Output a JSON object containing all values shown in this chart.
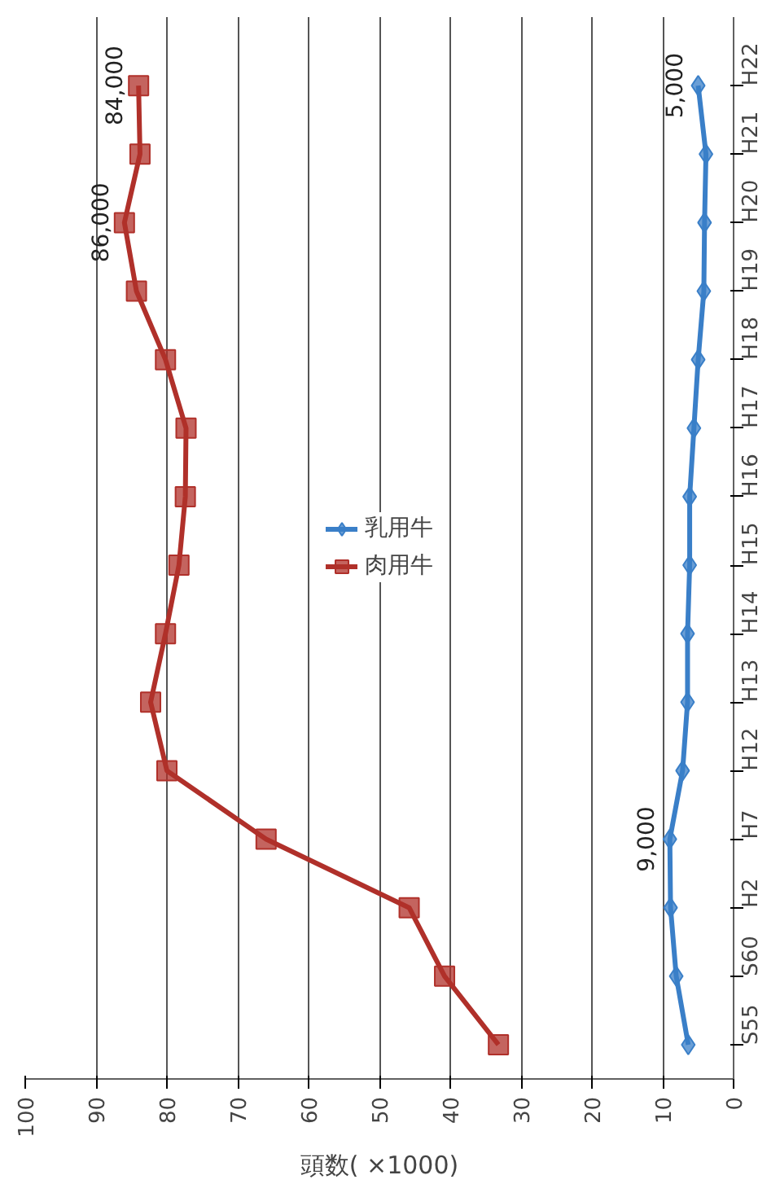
{
  "chart_data": {
    "type": "line",
    "orientation": "horizontal",
    "xlabel": "頭数( ×1000)",
    "categories": [
      "H22",
      "H21",
      "H20",
      "H19",
      "H18",
      "H17",
      "H16",
      "H15",
      "H14",
      "H13",
      "H12",
      "H7",
      "H2",
      "S60",
      "S55"
    ],
    "series": [
      {
        "name": "乳用牛",
        "color": "#3a7fc8",
        "marker": "diamond",
        "values": [
          5,
          3.9,
          4.1,
          4.2,
          5,
          5.6,
          6.2,
          6.2,
          6.5,
          6.5,
          7.2,
          9,
          8.9,
          8.1,
          6.4
        ]
      },
      {
        "name": "肉用牛",
        "color": "#b0302a",
        "marker": "square",
        "values": [
          84,
          83.8,
          86,
          84.3,
          80.2,
          77.3,
          77.4,
          78.3,
          80.2,
          82.3,
          80,
          66,
          45.8,
          40.8,
          33.2
        ]
      }
    ],
    "xlim": [
      100,
      0
    ],
    "xticks": [
      0,
      10,
      20,
      30,
      40,
      50,
      60,
      70,
      80,
      90,
      100
    ],
    "grid": "x",
    "legend": "center",
    "annotations": [
      {
        "text": "86,000",
        "x": 86,
        "y": "H20"
      },
      {
        "text": "84,000",
        "x": 84,
        "y": "H22"
      },
      {
        "text": "9,000",
        "x": 9,
        "y": "H7"
      },
      {
        "text": "5,000",
        "x": 5,
        "y": "H22"
      }
    ]
  }
}
